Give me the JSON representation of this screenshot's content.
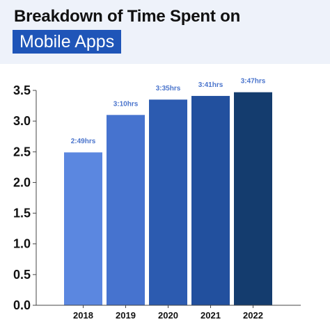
{
  "header": {
    "title_line1": "Breakdown of Time Spent on",
    "title_line2": "Mobile Apps",
    "band_color": "#eef2fa",
    "highlight_color": "#1f55b8"
  },
  "chart_data": {
    "type": "bar",
    "title": "Breakdown of Time Spent on Mobile Apps",
    "xlabel": "",
    "ylabel": "",
    "categories": [
      "2018",
      "2019",
      "2020",
      "2021",
      "2022"
    ],
    "values": [
      2.49,
      3.1,
      3.35,
      3.41,
      3.47
    ],
    "data_labels": [
      "2:49hrs",
      "3:10hrs",
      "3:35hrs",
      "3:41hrs",
      "3:47hrs"
    ],
    "bar_colors": [
      "#5b87e0",
      "#4673cf",
      "#2c5bb0",
      "#22509e",
      "#143c6e"
    ],
    "ylim": [
      0,
      3.5
    ],
    "yticks": [
      "0.0",
      "0.5",
      "1.0",
      "1.5",
      "2.0",
      "2.5",
      "3.0",
      "3.5"
    ],
    "grid": false,
    "legend": "none"
  }
}
